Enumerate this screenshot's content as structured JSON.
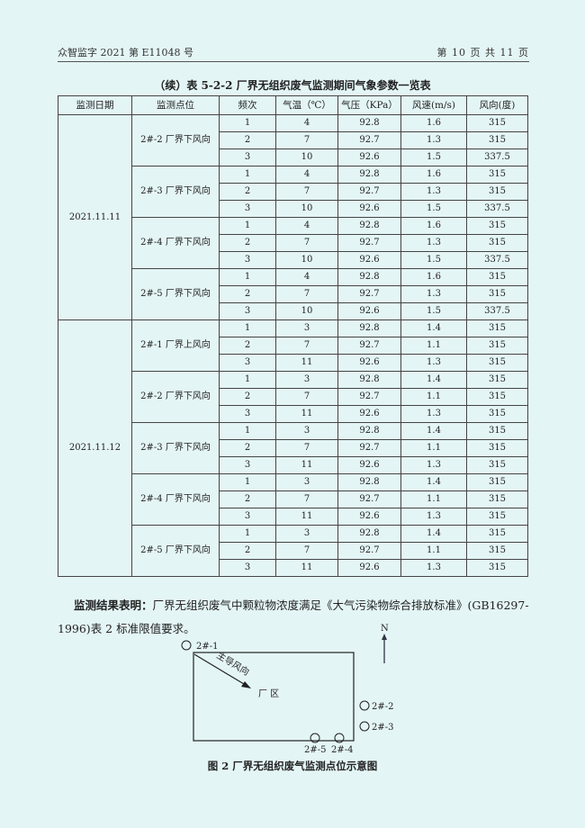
{
  "header": {
    "report_no": "众智监字 2021 第 E11048 号",
    "page": "第 10 页 共 11 页"
  },
  "table": {
    "caption": "（续）表 5-2-2    厂界无组织废气监测期间气象参数一览表",
    "columns": [
      "监测日期",
      "监测点位",
      "频次",
      "气温（℃）",
      "气压（KPa）",
      "风速(m/s)",
      "风向(度)"
    ],
    "groups": [
      {
        "date": "2021.11.11",
        "points": [
          {
            "point": "2#-2 厂界下风向",
            "rows": [
              [
                "1",
                "4",
                "92.8",
                "1.6",
                "315"
              ],
              [
                "2",
                "7",
                "92.7",
                "1.3",
                "315"
              ],
              [
                "3",
                "10",
                "92.6",
                "1.5",
                "337.5"
              ]
            ]
          },
          {
            "point": "2#-3 厂界下风向",
            "rows": [
              [
                "1",
                "4",
                "92.8",
                "1.6",
                "315"
              ],
              [
                "2",
                "7",
                "92.7",
                "1.3",
                "315"
              ],
              [
                "3",
                "10",
                "92.6",
                "1.5",
                "337.5"
              ]
            ]
          },
          {
            "point": "2#-4 厂界下风向",
            "rows": [
              [
                "1",
                "4",
                "92.8",
                "1.6",
                "315"
              ],
              [
                "2",
                "7",
                "92.7",
                "1.3",
                "315"
              ],
              [
                "3",
                "10",
                "92.6",
                "1.5",
                "337.5"
              ]
            ]
          },
          {
            "point": "2#-5 厂界下风向",
            "rows": [
              [
                "1",
                "4",
                "92.8",
                "1.6",
                "315"
              ],
              [
                "2",
                "7",
                "92.7",
                "1.3",
                "315"
              ],
              [
                "3",
                "10",
                "92.6",
                "1.5",
                "337.5"
              ]
            ]
          }
        ]
      },
      {
        "date": "2021.11.12",
        "points": [
          {
            "point": "2#-1 厂界上风向",
            "rows": [
              [
                "1",
                "3",
                "92.8",
                "1.4",
                "315"
              ],
              [
                "2",
                "7",
                "92.7",
                "1.1",
                "315"
              ],
              [
                "3",
                "11",
                "92.6",
                "1.3",
                "315"
              ]
            ]
          },
          {
            "point": "2#-2 厂界下风向",
            "rows": [
              [
                "1",
                "3",
                "92.8",
                "1.4",
                "315"
              ],
              [
                "2",
                "7",
                "92.7",
                "1.1",
                "315"
              ],
              [
                "3",
                "11",
                "92.6",
                "1.3",
                "315"
              ]
            ]
          },
          {
            "point": "2#-3 厂界下风向",
            "rows": [
              [
                "1",
                "3",
                "92.8",
                "1.4",
                "315"
              ],
              [
                "2",
                "7",
                "92.7",
                "1.1",
                "315"
              ],
              [
                "3",
                "11",
                "92.6",
                "1.3",
                "315"
              ]
            ]
          },
          {
            "point": "2#-4 厂界下风向",
            "rows": [
              [
                "1",
                "3",
                "92.8",
                "1.4",
                "315"
              ],
              [
                "2",
                "7",
                "92.7",
                "1.1",
                "315"
              ],
              [
                "3",
                "11",
                "92.6",
                "1.3",
                "315"
              ]
            ]
          },
          {
            "point": "2#-5 厂界下风向",
            "rows": [
              [
                "1",
                "3",
                "92.8",
                "1.4",
                "315"
              ],
              [
                "2",
                "7",
                "92.7",
                "1.1",
                "315"
              ],
              [
                "3",
                "11",
                "92.6",
                "1.3",
                "315"
              ]
            ]
          }
        ]
      }
    ]
  },
  "conclusion": {
    "label": "监测结果表明：",
    "text": "厂界无组织废气中颗粒物浓度满足《大气污染物综合排放标准》(GB16297-1996)表 2 标准限值要求。"
  },
  "figure": {
    "north": "N",
    "wind": "主导风向",
    "area": "厂    区",
    "points": [
      "2#-1",
      "2#-2",
      "2#-3",
      "2#-4",
      "2#-5"
    ],
    "caption": "图 2    厂界无组织废气监测点位示意图"
  }
}
